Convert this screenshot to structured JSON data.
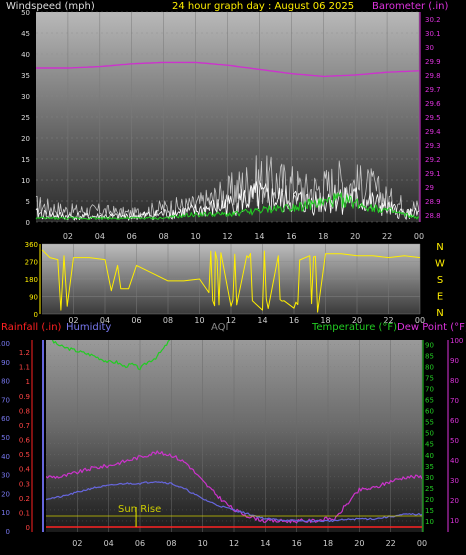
{
  "header": {
    "left_label": "Windspeed (mph)",
    "center_label": "24 hour graph day : August 06 2025",
    "right_label": "Barometer (.in)"
  },
  "colors": {
    "wind": "#ffffff",
    "gust": "#c8c8c8",
    "avg_wind": "#22cc22",
    "barometer": "#cc33cc",
    "direction": "#ffee00",
    "temperature": "#22cc22",
    "dew_point": "#cc33cc",
    "humidity": "#6666dd",
    "rainfall": "#ff2222",
    "aqi": "#888888",
    "sun_rise": "#cccc00"
  },
  "chart_data": [
    {
      "type": "line",
      "panel": "wind-barometer",
      "x_ticks": [
        "02",
        "04",
        "06",
        "08",
        "10",
        "12",
        "14",
        "16",
        "18",
        "20",
        "22",
        "00"
      ],
      "y_left_ticks": [
        "0",
        "5",
        "10",
        "15",
        "20",
        "25",
        "30",
        "35",
        "40",
        "45",
        "50"
      ],
      "y_left_range": [
        0,
        50
      ],
      "y_right_ticks": [
        "28.8",
        "28.9",
        "29",
        "29.1",
        "29.2",
        "29.3",
        "29.4",
        "29.5",
        "29.6",
        "29.7",
        "29.8",
        "29.9",
        "30",
        "30.1",
        "30.2"
      ],
      "y_right_range": [
        28.75,
        30.25
      ],
      "series": [
        {
          "axis": "right",
          "x": [
            0,
            2,
            4,
            6,
            8,
            10,
            12,
            14,
            16,
            18,
            20,
            22,
            24
          ],
          "values": [
            29.85,
            29.85,
            29.86,
            29.88,
            29.89,
            29.89,
            29.87,
            29.84,
            29.81,
            29.79,
            29.8,
            29.82,
            29.83
          ]
        },
        {
          "axis": "left",
          "style": "gust",
          "x": [
            0,
            2,
            4,
            6,
            8,
            10,
            11,
            12,
            13,
            14,
            15,
            16,
            17,
            18,
            19,
            20,
            21,
            22,
            23,
            24
          ],
          "values": [
            6,
            4,
            4,
            3,
            5,
            6,
            8,
            10,
            13,
            15,
            14,
            13,
            11,
            12,
            14,
            13,
            12,
            8,
            6,
            5
          ]
        },
        {
          "axis": "left",
          "style": "wind",
          "x": [
            0,
            2,
            4,
            6,
            8,
            10,
            11,
            12,
            13,
            14,
            15,
            16,
            17,
            18,
            19,
            20,
            21,
            22,
            23,
            24
          ],
          "values": [
            3,
            2,
            2,
            2,
            3,
            4,
            5,
            6,
            8,
            9,
            8,
            8,
            7,
            8,
            9,
            8,
            7,
            5,
            3,
            3
          ]
        },
        {
          "axis": "left",
          "style": "avg",
          "x": [
            0,
            2,
            4,
            6,
            8,
            10,
            12,
            14,
            16,
            18,
            19,
            20,
            21,
            22,
            23,
            24
          ],
          "values": [
            1,
            1,
            1,
            1,
            1,
            2,
            2,
            3,
            4,
            5,
            6,
            5,
            4,
            3,
            2,
            1
          ]
        }
      ]
    },
    {
      "type": "line",
      "panel": "wind-direction",
      "x_ticks": [
        "02",
        "04",
        "06",
        "08",
        "10",
        "12",
        "14",
        "16",
        "18",
        "20",
        "22",
        "00"
      ],
      "y_ticks": [
        "0",
        "90",
        "180",
        "270",
        "360"
      ],
      "y_range": [
        0,
        360
      ],
      "compass": [
        "N",
        "W",
        "S",
        "E",
        "N"
      ],
      "series": [
        {
          "x": [
            0,
            0.5,
            1,
            1.2,
            1.4,
            1.6,
            2,
            3,
            4,
            4.4,
            4.8,
            5,
            5.5,
            6,
            6.5,
            7,
            8,
            9,
            10,
            10.6,
            11,
            12,
            13,
            14,
            15,
            16,
            17,
            17.5,
            18,
            19,
            20,
            21,
            22,
            23,
            24
          ],
          "values": [
            330,
            290,
            280,
            20,
            300,
            40,
            290,
            290,
            280,
            120,
            250,
            130,
            130,
            250,
            230,
            210,
            170,
            170,
            180,
            110,
            320,
            40,
            300,
            20,
            300,
            30,
            300,
            10,
            310,
            310,
            300,
            300,
            290,
            300,
            290
          ]
        }
      ]
    },
    {
      "type": "line",
      "panel": "temperature-humidity-rain",
      "labels": {
        "rainfall": "Rainfall (.in)",
        "humidity": "Humidity",
        "aqi": "AQI",
        "temperature": "Temperature (°F)",
        "dew_point": "Dew Point (°F)",
        "sun_rise": "Sun Rise"
      },
      "x_ticks": [
        "02",
        "04",
        "06",
        "08",
        "10",
        "12",
        "14",
        "16",
        "18",
        "20",
        "22",
        "00"
      ],
      "y_rain_ticks": [
        "0",
        "0.1",
        "0.2",
        "0.3",
        "0.4",
        "0.5",
        "0.6",
        "0.7",
        "0.8",
        "0.9",
        "1",
        "1.1",
        "1.2"
      ],
      "y_humidity_ticks": [
        "0",
        "10",
        "20",
        "30",
        "40",
        "50",
        "60",
        "70",
        "80",
        "90",
        "100"
      ],
      "y_temp_ticks": [
        "10",
        "15",
        "20",
        "25",
        "30",
        "35",
        "40",
        "45",
        "50",
        "55",
        "60",
        "65",
        "70",
        "75",
        "80",
        "85",
        "90"
      ],
      "y_dew_ticks": [
        "10",
        "20",
        "30",
        "40",
        "50",
        "60",
        "70",
        "80",
        "90",
        "100"
      ],
      "temp_range": [
        5,
        92
      ],
      "series": [
        {
          "name": "Temperature",
          "axis": "temp",
          "x": [
            0,
            0.5,
            1,
            2,
            3,
            4,
            4.5,
            5,
            5.5,
            6,
            6.5,
            7,
            7.5,
            8
          ],
          "values": [
            96,
            91,
            89,
            87,
            85,
            82,
            82,
            80,
            81,
            79,
            82,
            84,
            88,
            93
          ]
        },
        {
          "name": "Dew Point",
          "axis": "temp",
          "x": [
            0,
            1,
            2,
            3,
            4,
            5,
            6,
            7,
            8,
            9,
            10,
            11,
            12,
            13,
            14,
            15,
            16,
            17,
            18,
            18.5,
            19,
            19.5,
            20,
            21,
            22,
            23,
            24
          ],
          "values": [
            30,
            30,
            32,
            34,
            35,
            37,
            39,
            41,
            40,
            36,
            28,
            21,
            15,
            12,
            10,
            10,
            10,
            10,
            11,
            11,
            16,
            20,
            24,
            25,
            28,
            30,
            30
          ]
        },
        {
          "name": "Humidity",
          "axis": "temp",
          "x": [
            0,
            1,
            2,
            3,
            4,
            5,
            6,
            7,
            8,
            9,
            10,
            11,
            12,
            13,
            14,
            16,
            18,
            20,
            21,
            22,
            23,
            24
          ],
          "values": [
            20,
            21,
            23,
            25,
            26,
            27,
            27,
            28,
            27,
            24,
            20,
            17,
            15,
            13,
            11,
            10,
            10,
            11,
            11,
            12,
            13,
            13
          ]
        },
        {
          "name": "Rainfall",
          "axis": "rain",
          "x": [
            0,
            24
          ],
          "values": [
            0,
            0
          ]
        },
        {
          "name": "Sun Rise",
          "type": "marker",
          "x": [
            5.75
          ],
          "values": [
            19
          ]
        }
      ]
    }
  ]
}
